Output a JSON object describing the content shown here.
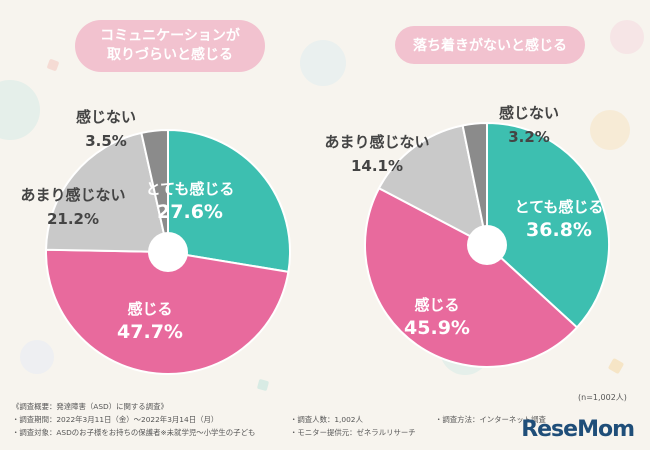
{
  "charts": [
    {
      "title_lines": [
        "コミュニケーションが",
        "取りづらいと感じる"
      ],
      "chart_data": {
        "type": "pie",
        "title": "コミュニケーションが取りづらいと感じる",
        "slices": [
          {
            "label": "とても感じる",
            "value": 27.6,
            "value_text": "27.6%",
            "color": "#3dbfb0",
            "text_color": "#ffffff"
          },
          {
            "label": "感じる",
            "value": 47.7,
            "value_text": "47.7%",
            "color": "#e86a9d",
            "text_color": "#ffffff"
          },
          {
            "label": "あまり感じない",
            "value": 21.2,
            "value_text": "21.2%",
            "color": "#c9c9c9",
            "text_color": "#444444"
          },
          {
            "label": "感じない",
            "value": 3.5,
            "value_text": "3.5%",
            "color": "#8b8b8b",
            "text_color": "#444444"
          }
        ]
      }
    },
    {
      "title_lines": [
        "落ち着きがないと感じる"
      ],
      "chart_data": {
        "type": "pie",
        "title": "落ち着きがないと感じる",
        "slices": [
          {
            "label": "とても感じる",
            "value": 36.8,
            "value_text": "36.8%",
            "color": "#3dbfb0",
            "text_color": "#ffffff"
          },
          {
            "label": "感じる",
            "value": 45.9,
            "value_text": "45.9%",
            "color": "#e86a9d",
            "text_color": "#ffffff"
          },
          {
            "label": "あまり感じない",
            "value": 14.1,
            "value_text": "14.1%",
            "color": "#c9c9c9",
            "text_color": "#444444"
          },
          {
            "label": "感じない",
            "value": 3.2,
            "value_text": "3.2%",
            "color": "#8b8b8b",
            "text_color": "#444444"
          }
        ]
      }
    }
  ],
  "sample_note": "(n=1,002人)",
  "footer": {
    "heading": "《調査概要：発達障害（ASD）に関する調査》",
    "period": "・調査期間：2022年3月11日（金）～2022年3月14日（月）",
    "target": "・調査対象：ASDのお子様をお持ちの保護者※未就学児～小学生の子ども",
    "count": "・調査人数：1,002人",
    "provider": "・モニター提供元：ゼネラルリサーチ",
    "method": "・調査方法：インターネット調査"
  },
  "logo": "ReseMom"
}
